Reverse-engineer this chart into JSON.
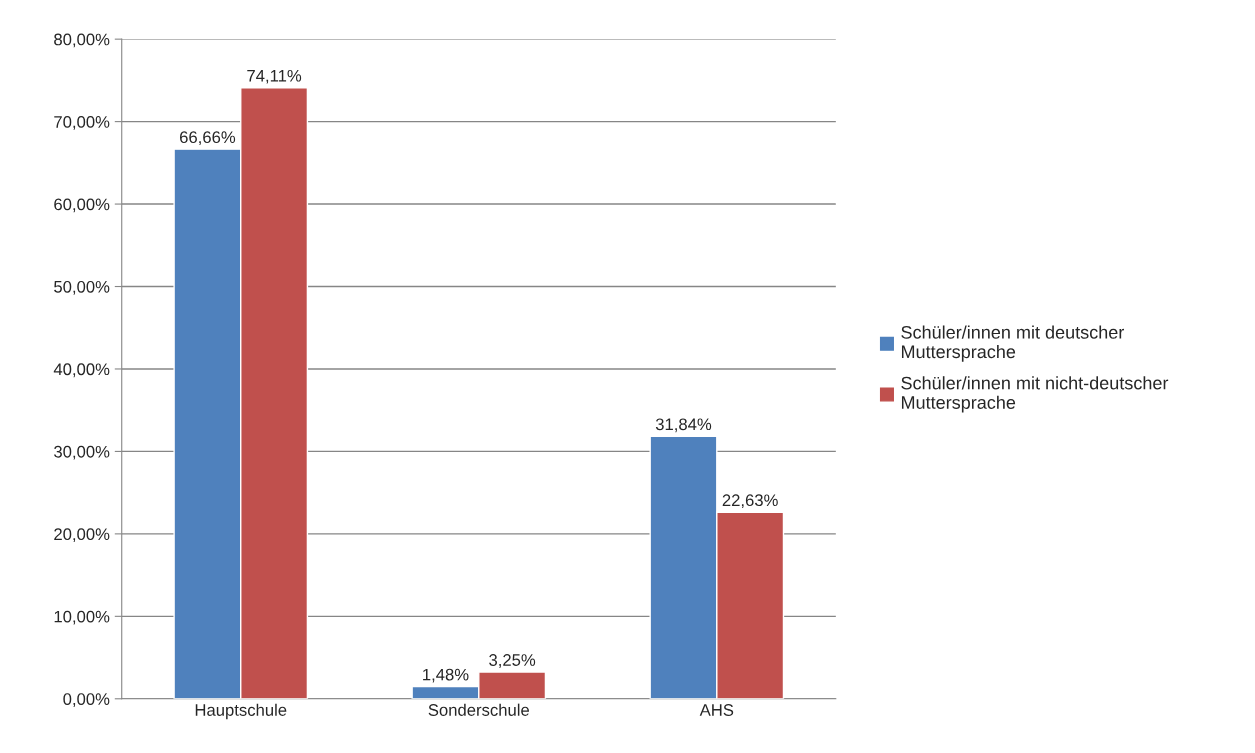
{
  "chart_data": {
    "type": "bar",
    "categories": [
      "Hauptschule",
      "Sonderschule",
      "AHS"
    ],
    "series": [
      {
        "name": "Schüler/innen mit deutscher Muttersprache",
        "color": "#4f81bd",
        "values": [
          66.66,
          1.48,
          31.84
        ],
        "value_labels": [
          "66,66%",
          "1,48%",
          "31,84%"
        ]
      },
      {
        "name": "Schüler/innen mit nicht-deutscher Muttersprache",
        "color": "#c0504d",
        "values": [
          74.11,
          3.25,
          22.63
        ],
        "value_labels": [
          "74,11%",
          "3,25%",
          "22,63%"
        ]
      }
    ],
    "ylim": [
      0,
      80
    ],
    "yticks": [
      {
        "value": 0,
        "label": "0,00%"
      },
      {
        "value": 10,
        "label": "10,00%"
      },
      {
        "value": 20,
        "label": "20,00%"
      },
      {
        "value": 30,
        "label": "30,00%"
      },
      {
        "value": 40,
        "label": "40,00%"
      },
      {
        "value": 50,
        "label": "50,00%"
      },
      {
        "value": 60,
        "label": "60,00%"
      },
      {
        "value": 70,
        "label": "70,00%"
      },
      {
        "value": 80,
        "label": "80,00%"
      }
    ],
    "grid": "y",
    "legend": "right"
  }
}
